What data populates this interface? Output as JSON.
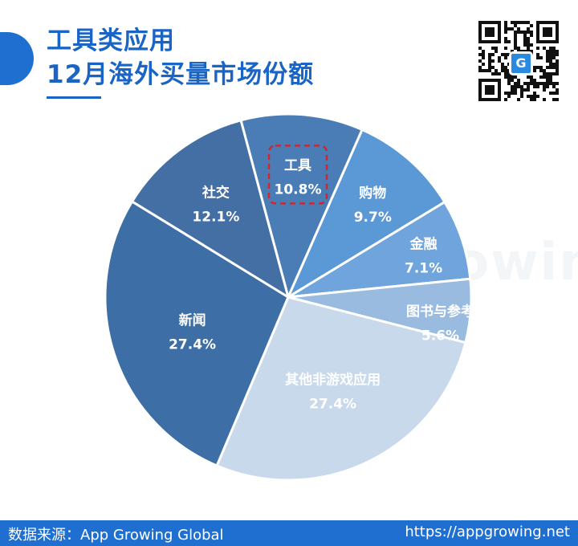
{
  "header": {
    "title_line1": "工具类应用",
    "title_line2": "12月海外买量市场份额",
    "accent_color": "#1a64c6"
  },
  "qr_code": {
    "icon": "qr-code-icon",
    "logo_icon": "appgrowing-logo-icon"
  },
  "watermark": {
    "text": "AppGrowing"
  },
  "chart_data": {
    "type": "pie",
    "start_angle_deg": -15,
    "highlight_slice": "工具",
    "highlight_style": "dashed-red-box",
    "slices": [
      {
        "label": "工具",
        "value_label": "10.8%",
        "value": 10.8,
        "color": "#4a7db6"
      },
      {
        "label": "购物",
        "value_label": "9.7%",
        "value": 9.7,
        "color": "#5a98d6"
      },
      {
        "label": "金融",
        "value_label": "7.1%",
        "value": 7.1,
        "color": "#6fa4dc"
      },
      {
        "label": "图书与参考",
        "value_label": "5.6%",
        "value": 5.6,
        "color": "#99bbe0"
      },
      {
        "label": "其他非游戏应用",
        "value_label": "27.4%",
        "value": 27.4,
        "color": "#c9d9ec"
      },
      {
        "label": "新闻",
        "value_label": "27.4%",
        "value": 27.4,
        "color": "#3e6ea6"
      },
      {
        "label": "社交",
        "value_label": "12.1%",
        "value": 12.1,
        "color": "#436fa5"
      }
    ]
  },
  "footer": {
    "source": "数据来源：App Growing Global",
    "url": "https://appgrowing.net",
    "background": "#1f6fd1"
  }
}
